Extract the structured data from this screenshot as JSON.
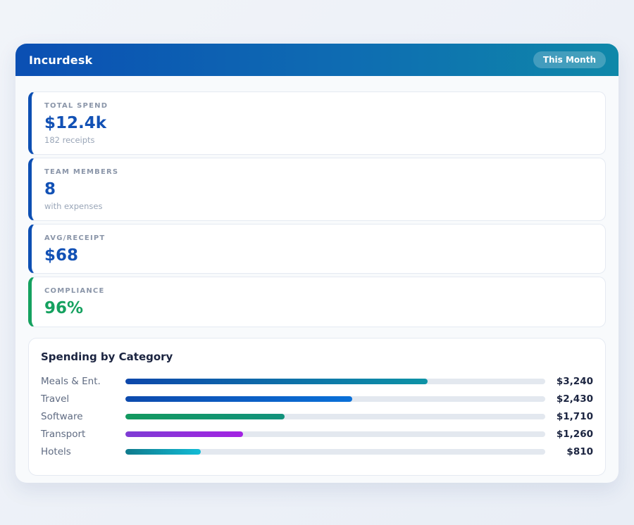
{
  "header": {
    "title": "Incurdesk",
    "period_badge": "This Month"
  },
  "colors": {
    "header_gradient_start": "#0b4fb3",
    "header_gradient_end": "#0f88a9",
    "accent_blue": "#0d4fb3",
    "accent_green": "#15a15f",
    "track_gray": "#e3e8ef"
  },
  "stats": [
    {
      "label": "TOTAL SPEND",
      "value": "$12.4k",
      "sub": "182 receipts",
      "accent": "#0d4fb3",
      "value_color": "#1251b5"
    },
    {
      "label": "TEAM MEMBERS",
      "value": "8",
      "sub": "with expenses",
      "accent": "#0d4fb3",
      "value_color": "#1251b5"
    },
    {
      "label": "AVG/RECEIPT",
      "value": "$68",
      "sub": "",
      "accent": "#0d4fb3",
      "value_color": "#1251b5"
    },
    {
      "label": "COMPLIANCE",
      "value": "96%",
      "sub": "",
      "accent": "#15a15f",
      "value_color": "#15a15f"
    }
  ],
  "chart_data": {
    "type": "bar",
    "orientation": "horizontal",
    "title": "Spending by Category",
    "categories": [
      "Meals & Ent.",
      "Travel",
      "Software",
      "Transport",
      "Hotels"
    ],
    "values": [
      3240,
      2430,
      1710,
      1260,
      810
    ],
    "value_labels": [
      "$3,240",
      "$2,430",
      "$1,710",
      "$1,260",
      "$810"
    ],
    "axis_max": 4500,
    "grid": false,
    "legend": false,
    "bar_gradients": [
      [
        "#0d47ab",
        "#0e93a6"
      ],
      [
        "#0d4aad",
        "#0a70d8"
      ],
      [
        "#13995f",
        "#12927c"
      ],
      [
        "#7e3cd4",
        "#a323e2"
      ],
      [
        "#0f7a8c",
        "#12bcd6"
      ]
    ]
  }
}
